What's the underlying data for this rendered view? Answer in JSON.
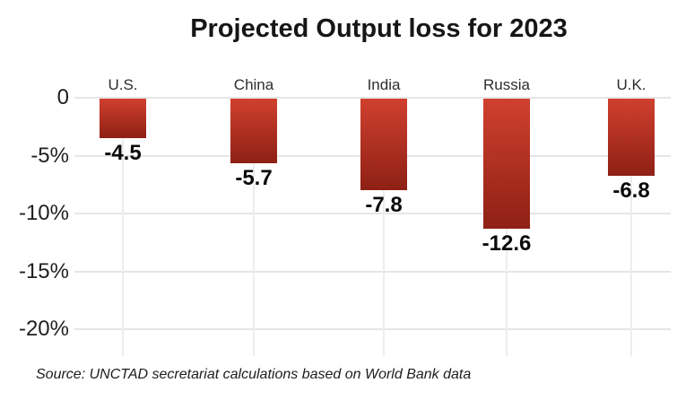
{
  "source_note": "Source: UNCTAD secretariat calculations based on World Bank data",
  "chart_data": {
    "type": "bar",
    "title": "Projected Output loss for 2023",
    "categories": [
      "U.S.",
      "China",
      "India",
      "Russia",
      "U.K."
    ],
    "values": [
      -4.5,
      -5.7,
      -7.8,
      -12.6,
      -6.8
    ],
    "value_labels": [
      "-4.5",
      "-5.7",
      "-7.8",
      "-12.6",
      "-6.8"
    ],
    "xlabel": "",
    "ylabel": "",
    "ylim": [
      -22,
      0
    ],
    "yticks": [
      0,
      -5,
      -10,
      -15,
      -20
    ],
    "ytick_labels": [
      "0",
      "-5%",
      "-10%",
      "-15%",
      "-20%"
    ],
    "grid": true,
    "legend": false,
    "bar_gradient_top": "#d0402e",
    "bar_gradient_bottom": "#8e2015",
    "gridline_color": "#e6e6e6",
    "background_color": "#ffffff",
    "title_color": "#161616",
    "value_label_color": "#0a0a0a"
  }
}
